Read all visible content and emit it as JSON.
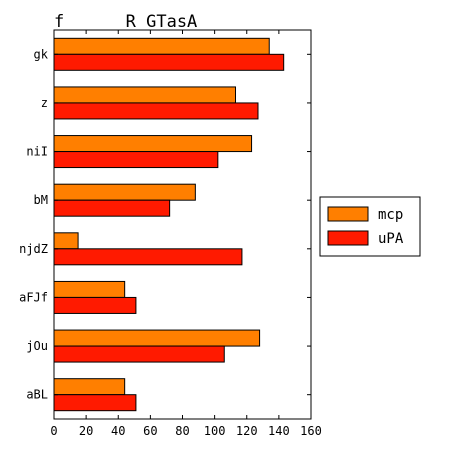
{
  "chart_data": {
    "type": "bar",
    "orientation": "horizontal",
    "title": "f      R GTasA",
    "xlabel": "",
    "ylabel": "",
    "categories": [
      "gk",
      "z",
      "niI",
      "bM",
      "njdZ",
      "aFJf",
      "jOu",
      "aBL"
    ],
    "series": [
      {
        "name": "mcp",
        "color": "#ff7f00",
        "values": [
          134,
          113,
          123,
          88,
          15,
          44,
          128,
          44
        ]
      },
      {
        "name": "uPA",
        "color": "#ff1a00",
        "values": [
          143,
          127,
          102,
          72,
          117,
          51,
          106,
          51
        ]
      }
    ],
    "xlim": [
      0,
      160
    ],
    "xticks": [
      0,
      20,
      40,
      60,
      80,
      100,
      120,
      140,
      160
    ],
    "grid": false,
    "legend_position": "right"
  }
}
